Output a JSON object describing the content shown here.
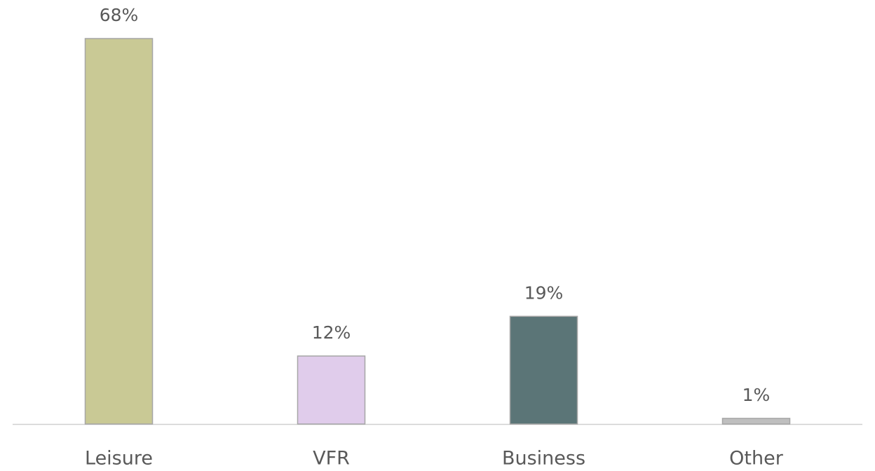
{
  "chart_data": {
    "type": "bar",
    "categories": [
      "Leisure",
      "VFR",
      "Business",
      "Other"
    ],
    "values": [
      68,
      12,
      19,
      1
    ],
    "value_labels": [
      "68%",
      "12%",
      "19%",
      "1%"
    ],
    "colors": [
      "#c9c995",
      "#e0cceb",
      "#5b7577",
      "#bfbfbf"
    ]
  }
}
